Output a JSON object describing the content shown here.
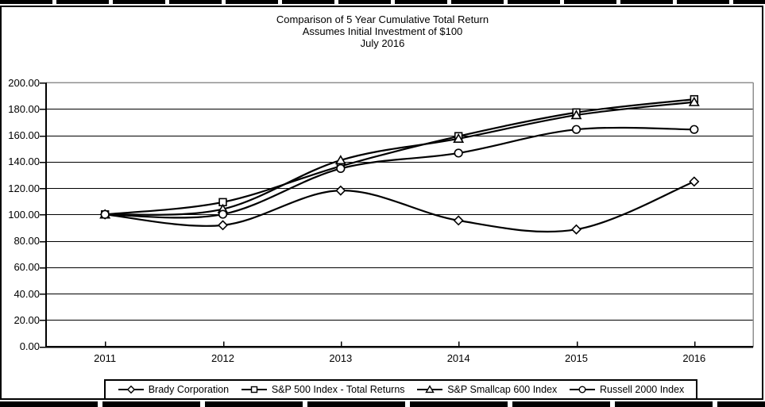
{
  "chart_data": {
    "type": "line",
    "title": "Comparison of 5 Year Cumulative Total Return",
    "subtitle": "Assumes Initial Investment of $100",
    "date_label": "July 2016",
    "categories": [
      "2011",
      "2012",
      "2013",
      "2014",
      "2015",
      "2016"
    ],
    "series": [
      {
        "name": "Brady Corporation",
        "marker": "diamond",
        "values": [
          100.0,
          91.8,
          118.1,
          95.4,
          88.6,
          124.9
        ]
      },
      {
        "name": "S&P 500 Index - Total Returns",
        "marker": "square",
        "values": [
          100.0,
          109.3,
          136.6,
          159.3,
          177.3,
          187.3
        ]
      },
      {
        "name": "S&P Smallcap 600 Index",
        "marker": "triangle",
        "values": [
          100.0,
          104.0,
          141.1,
          157.4,
          175.3,
          185.2
        ]
      },
      {
        "name": "Russell 2000 Index",
        "marker": "circle",
        "values": [
          100.0,
          100.1,
          134.8,
          146.5,
          164.4,
          164.4
        ]
      }
    ],
    "ylim": [
      0,
      200
    ],
    "ytick_step": 20,
    "ytick_labels": [
      "0.00",
      "20.00",
      "40.00",
      "60.00",
      "80.00",
      "100.00",
      "120.00",
      "140.00",
      "160.00",
      "180.00",
      "200.00"
    ],
    "grid": "horizontal",
    "legend_position": "bottom",
    "line_color": "#000000",
    "marker_fill": "#ffffff",
    "plot_border_color": "#909090",
    "background": "#ffffff"
  }
}
